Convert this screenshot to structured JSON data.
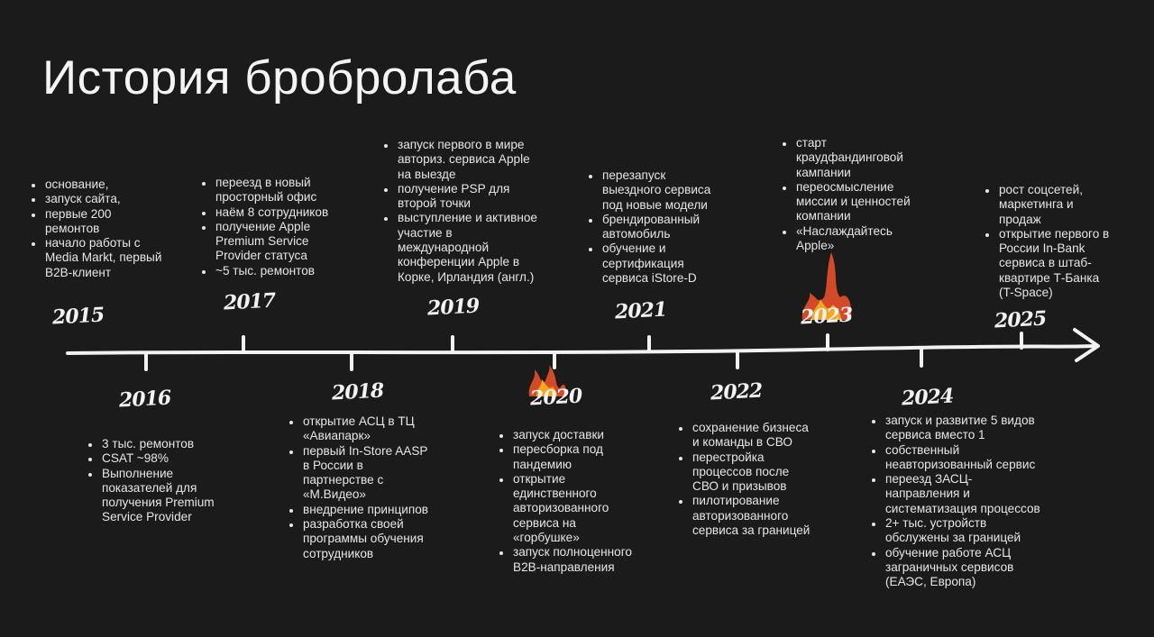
{
  "title": "История брoбролаба",
  "colors": {
    "background": "#1b1b1b",
    "text": "#e6e6e6",
    "flame": "#e8502a"
  },
  "timeline": [
    {
      "year": "2015",
      "items": [
        "основание,",
        "запуск сайта,",
        "первые 200\nремонтов",
        "начало работы с\nMedia Markt, первый\nB2B-клиент"
      ]
    },
    {
      "year": "2016",
      "items": [
        "3 тыс. ремонтов",
        "CSAT ~98%",
        "Выполнение\nпоказателей для\nполучения Premium\nService Provider"
      ]
    },
    {
      "year": "2017",
      "items": [
        "переезд в новый\nпросторный офис",
        "наём 8 сотрудников",
        "получение Apple\nPremium Service\nProvider статуса",
        "~5 тыс. ремонтов"
      ]
    },
    {
      "year": "2018",
      "items": [
        "открытие АСЦ в ТЦ\n«Авиапарк»",
        "первый In-Store AASP\nв России в\nпартнерстве с\n«М.Видео»",
        "внедрение принципов",
        "разработка своей\nпрограммы обучения\nсотрудников"
      ]
    },
    {
      "year": "2019",
      "items": [
        "запуск первого в мире\nавториз. сервиса Apple\nна выезде",
        "получение PSP для\nвторой точки",
        "выступление и активное\nучастие в\nмеждународной\nконференции Apple в\nКорке, Ирландия (англ.)"
      ]
    },
    {
      "year": "2020",
      "items": [
        "запуск доставки",
        "пересборка под\nпандемию",
        "открытие\nединственного\nавторизованного\nсервиса на\n«горбушке»",
        "запуск полноценного\nB2B-направления"
      ]
    },
    {
      "year": "2021",
      "items": [
        "перезапуск\nвыездного сервиса\nпод новые модели",
        "брендированный\nавтомобиль",
        "обучение и\nсертификация\nсервиса iStore-D"
      ]
    },
    {
      "year": "2022",
      "items": [
        "сохранение бизнеса\nи команды в СВО",
        "перестройка\nпроцессов после\nСВО и призывов",
        "пилотирование\nавторизованного\nсервиса за границей"
      ]
    },
    {
      "year": "2023",
      "items": [
        "старт\nкраудфандинговой\nкампании",
        "переосмысление\nмиссии и ценностей\nкомпании",
        "«Наслаждайтесь\nApple»"
      ]
    },
    {
      "year": "2024",
      "items": [
        "запуск и развитие 5 видов\nсервиса вместо 1",
        "собственный\nнеавторизованный сервис",
        "переезд ЗАСЦ-\nнаправления и\nсистематизация процессов",
        "2+ тыс. устройств\nобслужены за границей",
        "обучение работе АСЦ\nзаграничных сервисов\n(ЕАЭС, Европа)"
      ]
    },
    {
      "year": "2025",
      "items": [
        "рост соцсетей,\nмаркетинга и\nпродаж",
        "открытие первого в\nРоссии In-Bank\nсервиса в штаб-\nквартире Т-Банка\n(T-Space)"
      ]
    }
  ]
}
